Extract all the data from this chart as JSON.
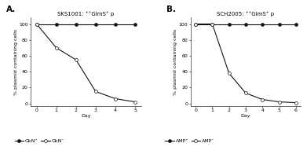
{
  "panel_A": {
    "title": "SKS1001: ⁺⁺GlmS⁺ p",
    "xlabel": "Day",
    "ylabel": "% plasmid containing cells",
    "xlim": [
      -0.3,
      5.3
    ],
    "ylim": [
      -3,
      108
    ],
    "xticks": [
      0,
      1,
      2,
      3,
      4,
      5
    ],
    "series_filled": {
      "x": [
        0,
        1,
        2,
        3,
        4,
        5
      ],
      "y": [
        100,
        100,
        100,
        100,
        100,
        100
      ]
    },
    "series_open": {
      "x": [
        0,
        1,
        2,
        3,
        4,
        5
      ],
      "y": [
        100,
        70,
        55,
        15,
        6,
        2
      ]
    },
    "legend_labels": [
      "GkN⁺",
      "GkN⁻"
    ],
    "panel_label": "A."
  },
  "panel_B": {
    "title": "SCH2005: ⁺⁺GlmS⁺ p",
    "xlabel": "Day",
    "ylabel": "% plasmid containing cells",
    "xlim": [
      -0.3,
      6.3
    ],
    "ylim": [
      -3,
      108
    ],
    "xticks": [
      0,
      1,
      2,
      3,
      4,
      5,
      6
    ],
    "series_filled": {
      "x": [
        0,
        1,
        2,
        3,
        4,
        5,
        6
      ],
      "y": [
        100,
        100,
        100,
        100,
        100,
        100,
        100
      ]
    },
    "series_open": {
      "x": [
        0,
        1,
        2,
        3,
        4,
        5,
        6
      ],
      "y": [
        100,
        100,
        38,
        13,
        5,
        2,
        1
      ]
    },
    "legend_labels": [
      "AMP⁺",
      "AMP⁻"
    ],
    "panel_label": "B."
  },
  "yticks": [
    0,
    20,
    40,
    60,
    80,
    100
  ],
  "tick_fontsize": 4.5,
  "label_fontsize": 4.5,
  "title_fontsize": 5.0,
  "panel_label_fontsize": 7.5,
  "legend_fontsize": 4.5,
  "linewidth": 0.8,
  "markersize": 2.8,
  "color": "#111111"
}
